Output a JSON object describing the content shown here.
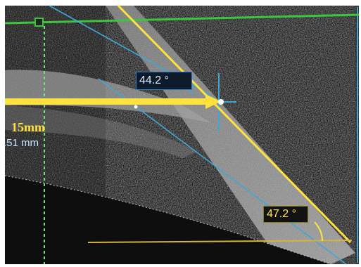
{
  "measurements": {
    "angle_upper": "44.2 °",
    "angle_lower": "47.2 °",
    "distance_primary": "15mm",
    "distance_secondary": ".51 mm"
  },
  "colors": {
    "frame": "#ffffff",
    "background": "#1a1a1a",
    "reference_line": "#3ec53e",
    "measurement_yellow": "#ffe23c",
    "measurement_blue": "#3fa7d6",
    "guide_green": "#74e07a",
    "baseline_yellow": "#d8b23a"
  },
  "icons": {
    "handle": "square-handle-icon",
    "arrow": "arrow-right-icon",
    "crosshair": "crosshair-icon"
  }
}
